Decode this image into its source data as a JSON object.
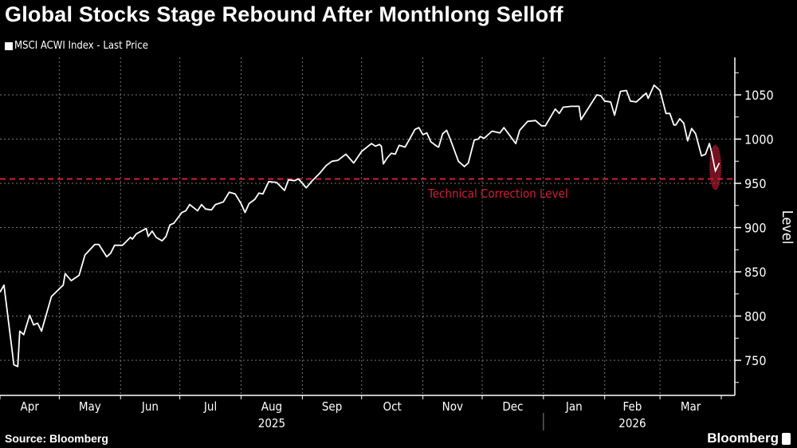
{
  "title": "Global Stocks Stage Rebound After Monthlong Selloff",
  "footer": {
    "source": "Source: Bloomberg",
    "brand": "Bloomberg"
  },
  "colors": {
    "background": "#000000",
    "line": "#ffffff",
    "threshold": "#d0203a",
    "grid": "#777777"
  },
  "chart_data": {
    "type": "line",
    "title": "Global Stocks Stage Rebound After Monthlong Selloff",
    "ylabel": "Level",
    "ylim": [
      705,
      1085
    ],
    "yticks": [
      750,
      800,
      850,
      900,
      950,
      1000,
      1050
    ],
    "xlim": [
      "2025-04-01",
      "2026-04-01"
    ],
    "xticks": [
      "Apr",
      "May",
      "Jun",
      "Jul",
      "Aug",
      "Sep",
      "Oct",
      "Nov",
      "Dec",
      "Jan",
      "Feb",
      "Mar"
    ],
    "year_labels": [
      "2025",
      "2026"
    ],
    "grid": true,
    "legend": "top-left",
    "series": [
      {
        "name": "MSCI ACWI Index - Last Price",
        "points": [
          [
            "2025-04-01",
            827
          ],
          [
            "2025-04-03",
            835
          ],
          [
            "2025-04-08",
            745
          ],
          [
            "2025-04-10",
            743
          ],
          [
            "2025-04-11",
            783
          ],
          [
            "2025-04-13",
            779
          ],
          [
            "2025-04-16",
            801
          ],
          [
            "2025-04-18",
            790
          ],
          [
            "2025-04-20",
            792
          ],
          [
            "2025-04-22",
            783
          ],
          [
            "2025-04-27",
            822
          ],
          [
            "2025-05-02",
            833
          ],
          [
            "2025-05-03",
            835
          ],
          [
            "2025-05-04",
            848
          ],
          [
            "2025-05-07",
            840
          ],
          [
            "2025-05-11",
            846
          ],
          [
            "2025-05-14",
            869
          ],
          [
            "2025-05-19",
            881
          ],
          [
            "2025-05-21",
            881
          ],
          [
            "2025-05-25",
            867
          ],
          [
            "2025-05-27",
            871
          ],
          [
            "2025-05-29",
            880
          ],
          [
            "2025-06-02",
            880
          ],
          [
            "2025-06-06",
            889
          ],
          [
            "2025-06-07",
            887
          ],
          [
            "2025-06-09",
            893
          ],
          [
            "2025-06-14",
            899
          ],
          [
            "2025-06-15",
            890
          ],
          [
            "2025-06-17",
            896
          ],
          [
            "2025-06-19",
            889
          ],
          [
            "2025-06-22",
            885
          ],
          [
            "2025-06-24",
            890
          ],
          [
            "2025-06-26",
            903
          ],
          [
            "2025-06-28",
            905
          ],
          [
            "2025-07-02",
            917
          ],
          [
            "2025-07-04",
            919
          ],
          [
            "2025-07-06",
            926
          ],
          [
            "2025-07-10",
            919
          ],
          [
            "2025-07-12",
            926
          ],
          [
            "2025-07-14",
            921
          ],
          [
            "2025-07-17",
            920
          ],
          [
            "2025-07-19",
            926
          ],
          [
            "2025-07-23",
            929
          ],
          [
            "2025-07-26",
            940
          ],
          [
            "2025-07-29",
            938
          ],
          [
            "2025-08-01",
            927
          ],
          [
            "2025-08-03",
            917
          ],
          [
            "2025-08-05",
            927
          ],
          [
            "2025-08-08",
            932
          ],
          [
            "2025-08-10",
            939
          ],
          [
            "2025-08-12",
            938
          ],
          [
            "2025-08-15",
            952
          ],
          [
            "2025-08-19",
            951
          ],
          [
            "2025-08-23",
            942
          ],
          [
            "2025-08-25",
            954
          ],
          [
            "2025-08-28",
            953
          ],
          [
            "2025-08-30",
            955
          ],
          [
            "2025-09-01",
            950
          ],
          [
            "2025-09-03",
            945
          ],
          [
            "2025-09-06",
            953
          ],
          [
            "2025-09-10",
            962
          ],
          [
            "2025-09-13",
            970
          ],
          [
            "2025-09-16",
            975
          ],
          [
            "2025-09-19",
            976
          ],
          [
            "2025-09-23",
            983
          ],
          [
            "2025-09-27",
            973
          ],
          [
            "2025-10-01",
            986
          ],
          [
            "2025-10-06",
            995
          ],
          [
            "2025-10-08",
            992
          ],
          [
            "2025-10-10",
            994
          ],
          [
            "2025-10-11",
            992
          ],
          [
            "2025-10-12",
            972
          ],
          [
            "2025-10-14",
            979
          ],
          [
            "2025-10-16",
            984
          ],
          [
            "2025-10-18",
            983
          ],
          [
            "2025-10-20",
            993
          ],
          [
            "2025-10-23",
            991
          ],
          [
            "2025-10-28",
            1011
          ],
          [
            "2025-10-30",
            1013
          ],
          [
            "2025-11-01",
            1005
          ],
          [
            "2025-11-03",
            1007
          ],
          [
            "2025-11-05",
            997
          ],
          [
            "2025-11-08",
            992
          ],
          [
            "2025-11-09",
            991
          ],
          [
            "2025-11-11",
            1006
          ],
          [
            "2025-11-13",
            1010
          ],
          [
            "2025-11-15",
            999
          ],
          [
            "2025-11-19",
            975
          ],
          [
            "2025-11-22",
            969
          ],
          [
            "2025-11-24",
            973
          ],
          [
            "2025-11-27",
            999
          ],
          [
            "2025-11-29",
            1000
          ],
          [
            "2025-11-30",
            1003
          ],
          [
            "2025-12-02",
            1001
          ],
          [
            "2025-12-06",
            1009
          ],
          [
            "2025-12-10",
            1007
          ],
          [
            "2025-12-12",
            1013
          ],
          [
            "2025-12-14",
            1007
          ],
          [
            "2025-12-18",
            995
          ],
          [
            "2025-12-20",
            1010
          ],
          [
            "2025-12-24",
            1020
          ],
          [
            "2025-12-28",
            1021
          ],
          [
            "2025-12-31",
            1015
          ],
          [
            "2026-01-02",
            1015
          ],
          [
            "2026-01-07",
            1034
          ],
          [
            "2026-01-09",
            1029
          ],
          [
            "2026-01-11",
            1036
          ],
          [
            "2026-01-15",
            1037
          ],
          [
            "2026-01-19",
            1037
          ],
          [
            "2026-01-20",
            1022
          ],
          [
            "2026-01-24",
            1036
          ],
          [
            "2026-01-28",
            1050
          ],
          [
            "2026-01-30",
            1049
          ],
          [
            "2026-02-01",
            1043
          ],
          [
            "2026-02-04",
            1042
          ],
          [
            "2026-02-06",
            1027
          ],
          [
            "2026-02-09",
            1054
          ],
          [
            "2026-02-12",
            1055
          ],
          [
            "2026-02-14",
            1043
          ],
          [
            "2026-02-17",
            1042
          ],
          [
            "2026-02-20",
            1048
          ],
          [
            "2026-02-22",
            1052
          ],
          [
            "2026-02-23",
            1046
          ],
          [
            "2026-02-26",
            1061
          ],
          [
            "2026-03-01",
            1055
          ],
          [
            "2026-03-04",
            1029
          ],
          [
            "2026-03-06",
            1029
          ],
          [
            "2026-03-08",
            1016
          ],
          [
            "2026-03-09",
            1016
          ],
          [
            "2026-03-11",
            1023
          ],
          [
            "2026-03-13",
            1018
          ],
          [
            "2026-03-15",
            998
          ],
          [
            "2026-03-17",
            1012
          ],
          [
            "2026-03-19",
            1006
          ],
          [
            "2026-03-22",
            981
          ],
          [
            "2026-03-24",
            983
          ],
          [
            "2026-03-26",
            995
          ],
          [
            "2026-03-27",
            986
          ],
          [
            "2026-03-29",
            964
          ],
          [
            "2026-03-31",
            973
          ]
        ]
      }
    ],
    "annotations": [
      {
        "type": "hline",
        "y": 955,
        "label": "Technical Correction Level",
        "color": "#d0203a",
        "style": "dashed"
      },
      {
        "type": "ellipse",
        "around": "last points",
        "color": "#d0203a"
      }
    ]
  }
}
